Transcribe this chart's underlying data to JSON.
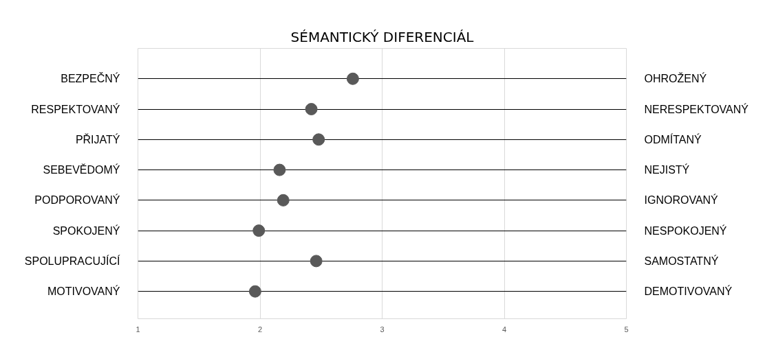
{
  "chart_data": {
    "type": "scatter",
    "title": "SÉMANTICKÝ DIFERENCIÁL",
    "categories": [
      "BEZPEČNÝ",
      "RESPEKTOVANÝ",
      "PŘIJATÝ",
      "SEBEVĚDOMÝ",
      "PODPOROVANÝ",
      "SPOKOJENÝ",
      "SPOLUPRACUJÍCÍ",
      "MOTIVOVANÝ"
    ],
    "y2_categories": [
      "OHROŽENÝ",
      "NERESPEKTOVANÝ",
      "ODMÍTANÝ",
      "NEJISTÝ",
      "IGNOROVANÝ",
      "NESPOKOJENÝ",
      "SAMOSTATNÝ",
      "DEMOTIVOVANÝ"
    ],
    "orientation": "horizontal",
    "values": [
      2.76,
      2.42,
      2.48,
      2.16,
      2.19,
      1.99,
      2.46,
      1.96
    ],
    "color": "#595959",
    "marker": "circle",
    "xlim": [
      1,
      5
    ],
    "xticks": [
      1,
      2,
      3,
      4,
      5
    ],
    "grid": true
  }
}
